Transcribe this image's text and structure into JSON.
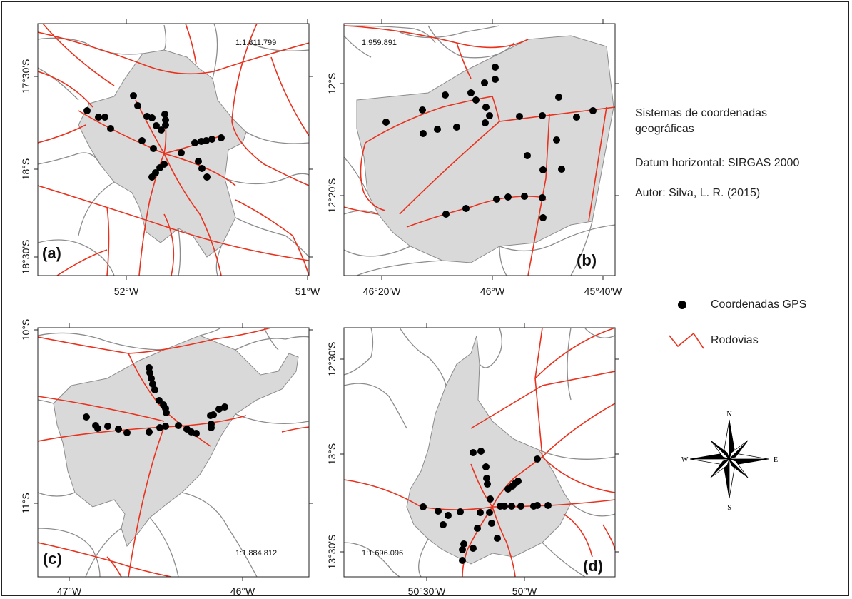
{
  "panels": [
    {
      "id": "a",
      "letter": "(a)",
      "scale": "1:1.811.799",
      "lat_ticks": [
        "17°30'S",
        "18°S",
        "18°30'S"
      ],
      "lon_ticks": [
        "52°W",
        "51°W"
      ]
    },
    {
      "id": "b",
      "letter": "(b)",
      "scale": "1:959.891",
      "lat_ticks": [
        "12°S",
        "12°20'S"
      ],
      "lon_ticks": [
        "46°20'W",
        "46°W",
        "45°40'W"
      ]
    },
    {
      "id": "c",
      "letter": "(c)",
      "scale": "1:1.884.812",
      "lat_ticks": [
        "10°S",
        "11°S"
      ],
      "lon_ticks": [
        "47°W",
        "46°W"
      ]
    },
    {
      "id": "d",
      "letter": "(d)",
      "scale": "1:1.696.096",
      "lat_ticks": [
        "12°30'S",
        "13°S",
        "13°30'S"
      ],
      "lon_ticks": [
        "50°30'W",
        "50°W"
      ]
    }
  ],
  "info": {
    "coord_system": "Sistemas de coordenadas geográficas",
    "datum": "Datum horizontal: SIRGAS 2000",
    "author": "Autor: Silva, L. R. (2015)"
  },
  "legend": {
    "gps_label": "Coordenadas GPS",
    "roads_label": "Rodovias"
  },
  "compass": {
    "n": "N",
    "s": "S",
    "e": "E",
    "w": "W"
  },
  "colors": {
    "roads": "#e8321e",
    "region_fill": "#d9d9d9",
    "rivers": "#8c8c8c",
    "points": "#000000"
  }
}
